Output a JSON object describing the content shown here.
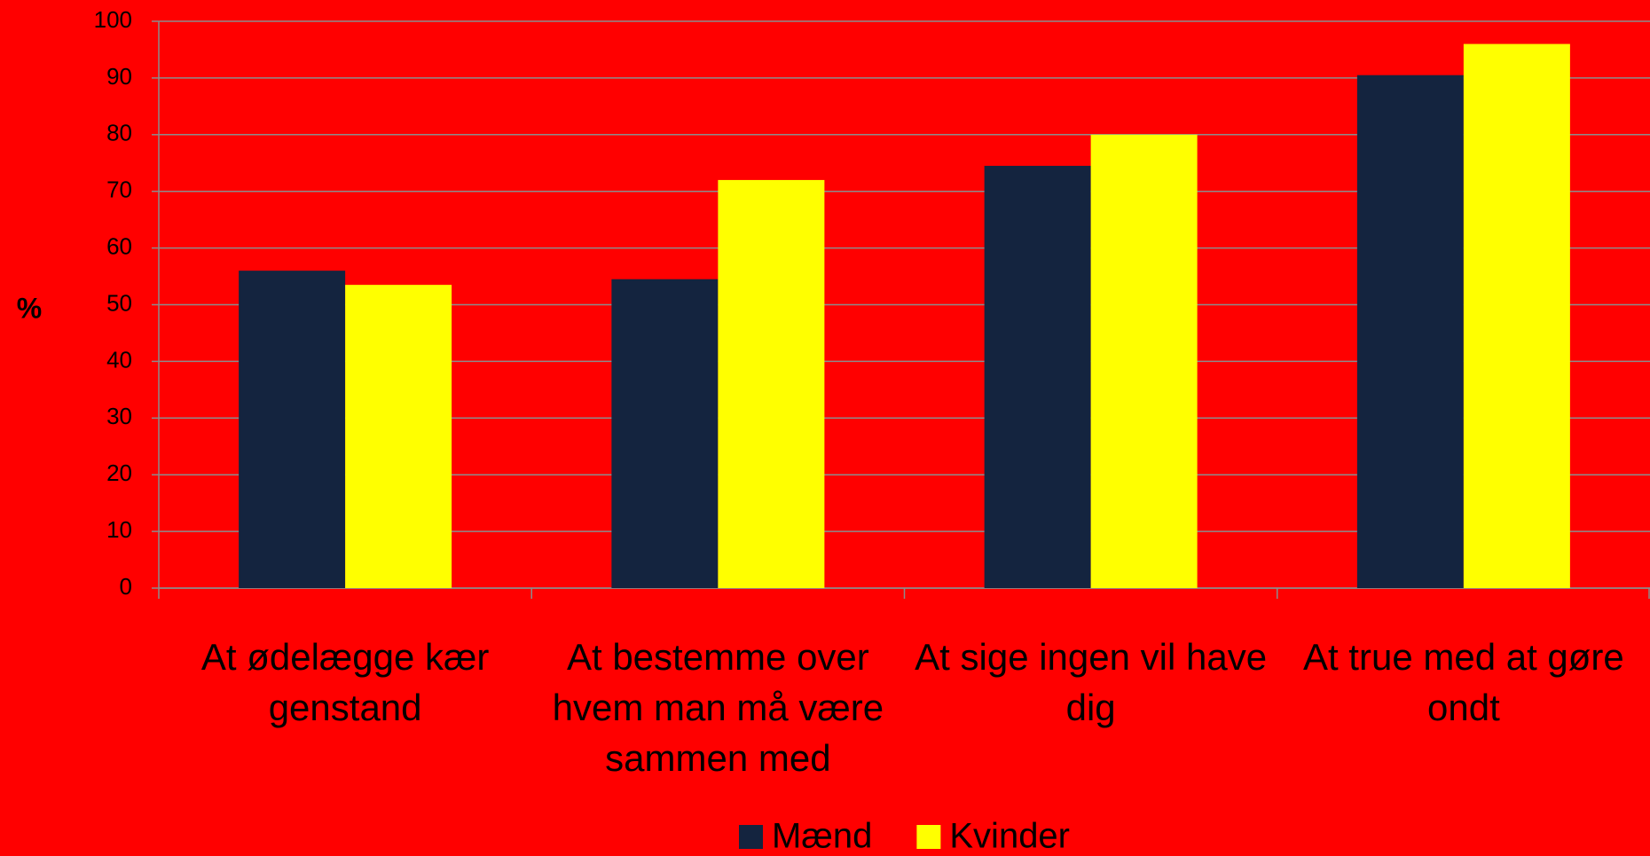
{
  "chart_data": {
    "type": "bar",
    "categories": [
      "At ødelægge kær genstand",
      "At bestemme over hvem man må være sammen med",
      "At sige ingen vil have dig",
      "At true med at gøre ondt"
    ],
    "series": [
      {
        "name": "Mænd",
        "color": "#14243f",
        "values": [
          56,
          54.5,
          74.5,
          90.5
        ]
      },
      {
        "name": "Kvinder",
        "color": "#ffff00",
        "values": [
          53.5,
          72,
          80,
          96
        ]
      }
    ],
    "y_axis_label": "%",
    "ylim": [
      0,
      100
    ],
    "yticks": [
      0,
      10,
      20,
      30,
      40,
      50,
      60,
      70,
      80,
      90,
      100
    ],
    "grid": true,
    "legend": "bottom",
    "background": "#ff0000"
  }
}
